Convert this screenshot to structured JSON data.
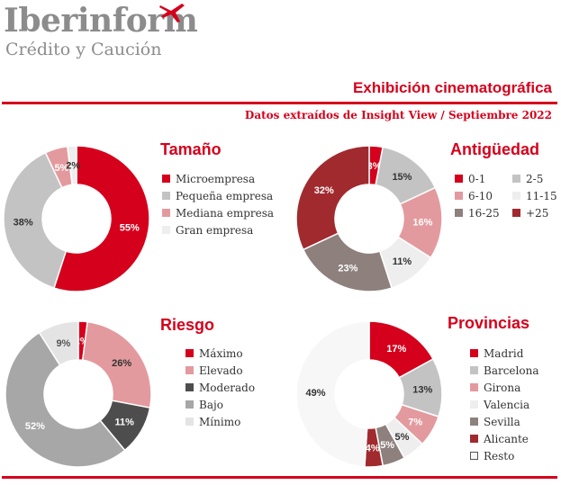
{
  "header": {
    "logo_name": "Iberinform",
    "logo_tagline": "Crédito y Caución",
    "title": "Exhibición cinematográfica",
    "subtitle": "Datos extraídos de Insight View / Septiembre 2022"
  },
  "chart_data": [
    {
      "type": "pie",
      "title": "Tamaño",
      "donut": true,
      "categories": [
        "Microempresa",
        "Pequeña empresa",
        "Mediana empresa",
        "Gran empresa"
      ],
      "values": [
        55,
        38,
        5,
        2
      ],
      "labels": [
        "55%",
        "38%",
        "5%",
        "2%"
      ],
      "colors": [
        "#d5001c",
        "#c3c3c3",
        "#e39a9e",
        "#eeeeee"
      ],
      "label_colors": [
        "#ffffff",
        "#333333",
        "#ffffff",
        "#333333"
      ],
      "legend_position": "right"
    },
    {
      "type": "pie",
      "title": "Antigüedad",
      "donut": true,
      "categories": [
        "0-1",
        "2-5",
        "6-10",
        "11-15",
        "16-25",
        "+25"
      ],
      "values": [
        3,
        15,
        16,
        11,
        23,
        32
      ],
      "labels": [
        "3%",
        "15%",
        "16%",
        "11%",
        "23%",
        "32%"
      ],
      "colors": [
        "#d5001c",
        "#c3c3c3",
        "#e39a9e",
        "#eeeeee",
        "#8d807d",
        "#a02a2e"
      ],
      "label_colors": [
        "#ffffff",
        "#333333",
        "#ffffff",
        "#333333",
        "#ffffff",
        "#ffffff"
      ],
      "legend_position": "right"
    },
    {
      "type": "pie",
      "title": "Riesgo",
      "donut": true,
      "categories": [
        "Máximo",
        "Elevado",
        "Moderado",
        "Bajo",
        "Mínimo"
      ],
      "values": [
        2,
        26,
        11,
        52,
        9
      ],
      "labels": [
        "2%",
        "26%",
        "11%",
        "52%",
        "9%"
      ],
      "colors": [
        "#d5001c",
        "#e39a9e",
        "#4d4d4d",
        "#a7a7a7",
        "#e4e4e4"
      ],
      "label_colors": [
        "#ffffff",
        "#333333",
        "#ffffff",
        "#ffffff",
        "#555555"
      ],
      "legend_position": "right"
    },
    {
      "type": "pie",
      "title": "Provincias",
      "donut": true,
      "categories": [
        "Madrid",
        "Barcelona",
        "Girona",
        "Valencia",
        "Sevilla",
        "Alicante",
        "Resto"
      ],
      "values": [
        17,
        13,
        7,
        5,
        5,
        4,
        49
      ],
      "labels": [
        "17%",
        "13%",
        "7%",
        "5%",
        "5%",
        "4%",
        "49%"
      ],
      "colors": [
        "#d5001c",
        "#c3c3c3",
        "#e39a9e",
        "#eeeeee",
        "#8d807d",
        "#a02a2e",
        "#f7f7f7"
      ],
      "label_colors": [
        "#ffffff",
        "#333333",
        "#ffffff",
        "#333333",
        "#ffffff",
        "#ffffff",
        "#333333"
      ],
      "legend_position": "right"
    }
  ]
}
